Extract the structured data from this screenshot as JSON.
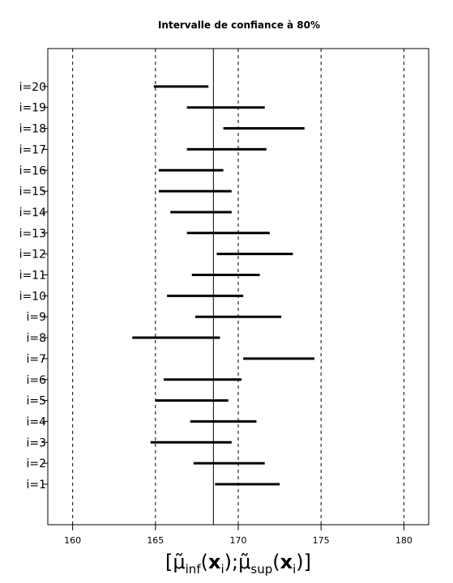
{
  "chart_data": {
    "type": "interval",
    "title": "Intervalle de confiance à 80%",
    "xlabel": {
      "open": "[",
      "mu": "μ̃",
      "sub_inf": "inf",
      "x": "x",
      "sub_i": "i",
      "sep": ";",
      "sub_sup": "sup",
      "close": "]"
    },
    "xlim": [
      158.5,
      181.5
    ],
    "xticks": [
      160,
      165,
      170,
      175,
      180
    ],
    "xtick_labels": [
      "160",
      "165",
      "170",
      "175",
      "180"
    ],
    "vertical_grid": [
      160,
      165,
      170,
      175,
      180
    ],
    "reference_line": 168.5,
    "categories": [
      "i=1",
      "i=2",
      "i=3",
      "i=4",
      "i=5",
      "i=6",
      "i=7",
      "i=8",
      "i=9",
      "i=10",
      "i=11",
      "i=12",
      "i=13",
      "i=14",
      "i=15",
      "i=16",
      "i=17",
      "i=18",
      "i=19",
      "i=20"
    ],
    "intervals": [
      {
        "label": "i=1",
        "low": 168.6,
        "high": 172.5
      },
      {
        "label": "i=2",
        "low": 167.3,
        "high": 171.6
      },
      {
        "label": "i=3",
        "low": 164.7,
        "high": 169.6
      },
      {
        "label": "i=4",
        "low": 167.1,
        "high": 171.1
      },
      {
        "label": "i=5",
        "low": 165.0,
        "high": 169.4
      },
      {
        "label": "i=6",
        "low": 165.5,
        "high": 170.2
      },
      {
        "label": "i=7",
        "low": 170.3,
        "high": 174.6
      },
      {
        "label": "i=8",
        "low": 163.6,
        "high": 168.9
      },
      {
        "label": "i=9",
        "low": 167.4,
        "high": 172.6
      },
      {
        "label": "i=10",
        "low": 165.7,
        "high": 170.3
      },
      {
        "label": "i=11",
        "low": 167.2,
        "high": 171.3
      },
      {
        "label": "i=12",
        "low": 168.7,
        "high": 173.3
      },
      {
        "label": "i=13",
        "low": 166.9,
        "high": 171.9
      },
      {
        "label": "i=14",
        "low": 165.9,
        "high": 169.6
      },
      {
        "label": "i=15",
        "low": 165.2,
        "high": 169.6
      },
      {
        "label": "i=16",
        "low": 165.2,
        "high": 169.1
      },
      {
        "label": "i=17",
        "low": 166.9,
        "high": 171.7
      },
      {
        "label": "i=18",
        "low": 169.1,
        "high": 174.0
      },
      {
        "label": "i=19",
        "low": 166.9,
        "high": 171.6
      },
      {
        "label": "i=20",
        "low": 164.9,
        "high": 168.2
      }
    ]
  }
}
